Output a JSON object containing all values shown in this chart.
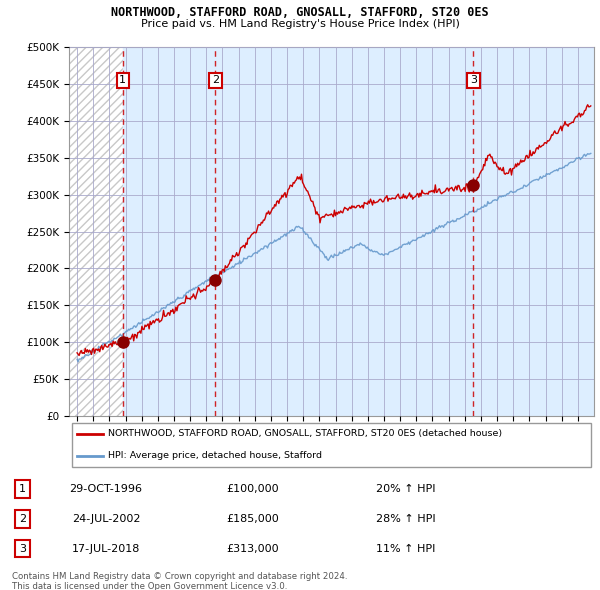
{
  "title_line1": "NORTHWOOD, STAFFORD ROAD, GNOSALL, STAFFORD, ST20 0ES",
  "title_line2": "Price paid vs. HM Land Registry's House Price Index (HPI)",
  "ylabel_ticks": [
    "£0",
    "£50K",
    "£100K",
    "£150K",
    "£200K",
    "£250K",
    "£300K",
    "£350K",
    "£400K",
    "£450K",
    "£500K"
  ],
  "ytick_vals": [
    0,
    50000,
    100000,
    150000,
    200000,
    250000,
    300000,
    350000,
    400000,
    450000,
    500000
  ],
  "xlim": [
    1993.5,
    2026.0
  ],
  "ylim": [
    0,
    500000
  ],
  "sale_dates": [
    1996.83,
    2002.56,
    2018.54
  ],
  "sale_prices": [
    100000,
    185000,
    313000
  ],
  "sale_labels": [
    "1",
    "2",
    "3"
  ],
  "sale_info": [
    {
      "num": "1",
      "date": "29-OCT-1996",
      "price": "£100,000",
      "hpi": "20% ↑ HPI"
    },
    {
      "num": "2",
      "date": "24-JUL-2002",
      "price": "£185,000",
      "hpi": "28% ↑ HPI"
    },
    {
      "num": "3",
      "date": "17-JUL-2018",
      "price": "£313,000",
      "hpi": "11% ↑ HPI"
    }
  ],
  "legend_line1": "NORTHWOOD, STAFFORD ROAD, GNOSALL, STAFFORD, ST20 0ES (detached house)",
  "legend_line2": "HPI: Average price, detached house, Stafford",
  "footer_line1": "Contains HM Land Registry data © Crown copyright and database right 2024.",
  "footer_line2": "This data is licensed under the Open Government Licence v3.0.",
  "red_color": "#cc0000",
  "blue_color": "#6699cc",
  "hatch_color": "#cccccc",
  "grid_color": "#aaaacc",
  "bg_blue": "#ddeeff",
  "bg_hatch_color": "#c8c8c8"
}
